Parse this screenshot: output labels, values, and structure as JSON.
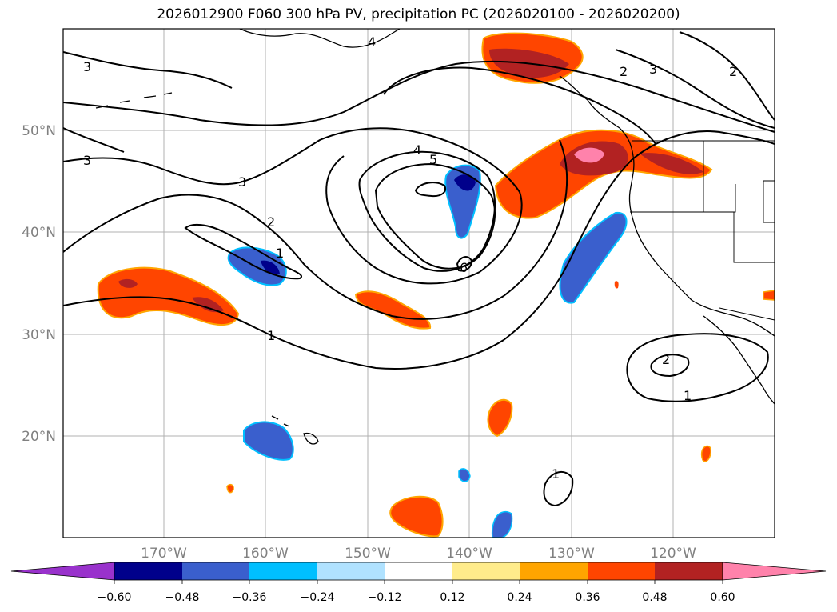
{
  "title": "2026012900 F060 300 hPa PV, precipitation PC (2026020100 - 2026020200)",
  "latitude_labels": [
    "50°N",
    "40°N",
    "30°N",
    "20°N"
  ],
  "longitude_labels": [
    "170°W",
    "160°W",
    "150°W",
    "140°W",
    "130°W",
    "120°W"
  ],
  "colorbar": {
    "ticks": [
      "−0.60",
      "−0.48",
      "−0.36",
      "−0.24",
      "−0.12",
      "0.12",
      "0.24",
      "0.36",
      "0.48",
      "0.60"
    ],
    "colors": [
      "#9932cc",
      "#00008b",
      "#3a5fcd",
      "#00bfff",
      "#b0e2ff",
      "#ffffff",
      "#ffec8b",
      "#ffa500",
      "#ff4500",
      "#b22222",
      "#ff82ab"
    ]
  },
  "contour_labels": [
    "3",
    "4",
    "3",
    "3",
    "4",
    "5",
    "2",
    "1",
    "6",
    "1",
    "2",
    "1",
    "1",
    "2",
    "3",
    "2"
  ]
}
